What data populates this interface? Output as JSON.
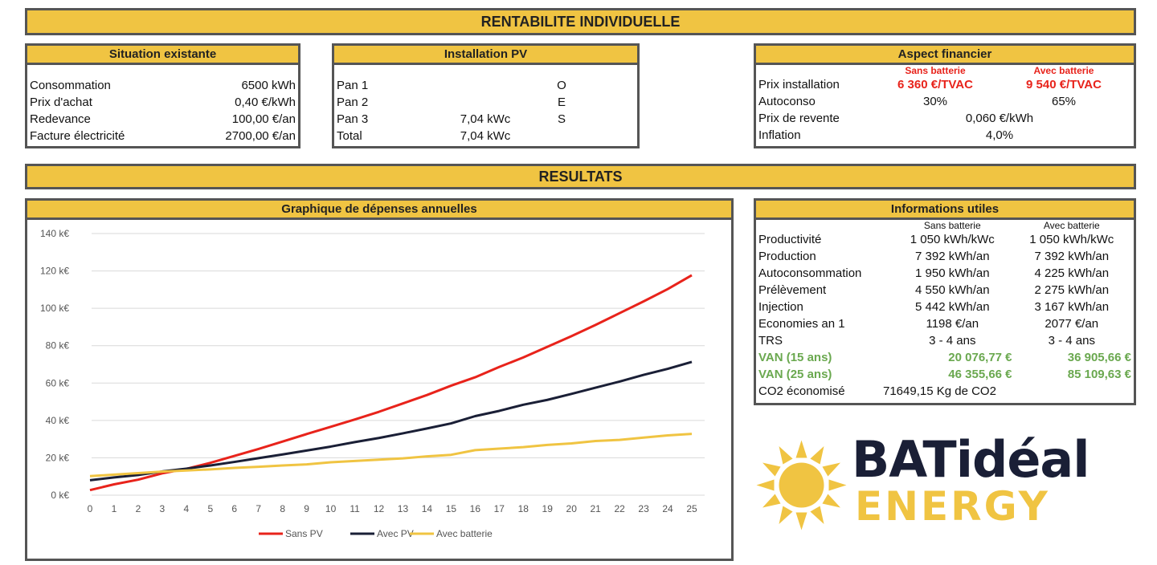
{
  "header": {
    "title": "RENTABILITE INDIVIDUELLE"
  },
  "situation": {
    "title": "Situation existante",
    "rows": [
      {
        "label": "Consommation",
        "value": "6500 kWh"
      },
      {
        "label": "Prix d'achat",
        "value": "0,40 €/kWh"
      },
      {
        "label": "Redevance",
        "value": "100,00 €/an"
      },
      {
        "label": "Facture électricité",
        "value": "2700,00 €/an"
      }
    ]
  },
  "installation": {
    "title": "Installation PV",
    "rows": [
      {
        "label": "Pan 1",
        "power": "",
        "orientation": "O"
      },
      {
        "label": "Pan 2",
        "power": "",
        "orientation": "E"
      },
      {
        "label": "Pan 3",
        "power": "7,04 kWc",
        "orientation": "S"
      },
      {
        "label": "Total",
        "power": "7,04 kWc",
        "orientation": ""
      }
    ]
  },
  "financier": {
    "title": "Aspect financier",
    "col_sans": "Sans batterie",
    "col_avec": "Avec batterie",
    "prix_label": "Prix installation",
    "prix_sans": "6 360 €/TVAC",
    "prix_avec": "9 540 €/TVAC",
    "autoconso_label": "Autoconso",
    "autoconso_sans": "30%",
    "autoconso_avec": "65%",
    "revente_label": "Prix de revente",
    "revente_value": "0,060 €/kWh",
    "inflation_label": "Inflation",
    "inflation_value": "4,0%"
  },
  "resultats": {
    "title": "RESULTATS"
  },
  "chart_box": {
    "title": "Graphique de dépenses annuelles"
  },
  "chart_data": {
    "type": "line",
    "title": "Graphique de dépenses annuelles",
    "x": [
      0,
      1,
      2,
      3,
      4,
      5,
      6,
      7,
      8,
      9,
      10,
      11,
      12,
      13,
      14,
      15,
      16,
      17,
      18,
      19,
      20,
      21,
      22,
      23,
      24,
      25
    ],
    "ylim": [
      0,
      140
    ],
    "yticks": [
      0,
      20,
      40,
      60,
      80,
      100,
      120,
      140
    ],
    "ytick_labels": [
      "0 k€",
      "20 k€",
      "40 k€",
      "60 k€",
      "80 k€",
      "100 k€",
      "120 k€",
      "140 k€"
    ],
    "legend_position": "bottom",
    "grid": true,
    "series": [
      {
        "name": "Sans PV",
        "color": "#e8231b",
        "values": [
          2.7,
          5.8,
          8.3,
          11.7,
          14.1,
          17.3,
          21.0,
          24.7,
          28.7,
          32.7,
          36.6,
          40.5,
          44.6,
          49.1,
          53.6,
          58.6,
          63.1,
          68.6,
          73.7,
          79.4,
          85.1,
          91.1,
          97.4,
          103.7,
          110.3,
          117.7
        ]
      },
      {
        "name": "Avec PV",
        "color": "#1a1f36",
        "values": [
          8.0,
          9.5,
          10.8,
          12.7,
          14.2,
          15.9,
          17.8,
          19.8,
          21.8,
          23.9,
          26.0,
          28.4,
          30.6,
          33.1,
          35.7,
          38.4,
          42.3,
          45.1,
          48.4,
          51.0,
          54.2,
          57.5,
          60.8,
          64.4,
          67.6,
          71.3
        ]
      },
      {
        "name": "Avec batterie",
        "color": "#f0c442",
        "values": [
          10.2,
          11.0,
          11.8,
          12.6,
          13.2,
          13.8,
          14.6,
          15.2,
          15.9,
          16.5,
          17.6,
          18.3,
          19.0,
          19.7,
          20.8,
          21.6,
          24.1,
          24.9,
          25.7,
          26.9,
          27.7,
          29.0,
          29.6,
          30.8,
          32.0,
          32.8
        ]
      }
    ]
  },
  "infos": {
    "title": "Informations utiles",
    "col_sans": "Sans batterie",
    "col_avec": "Avec batterie",
    "rows": [
      {
        "label": "Productivité",
        "sans": "1 050 kWh/kWc",
        "avec": "1 050 kWh/kWc",
        "style": ""
      },
      {
        "label": "Production",
        "sans": "7 392 kWh/an",
        "avec": "7 392 kWh/an",
        "style": ""
      },
      {
        "label": "Autoconsommation",
        "sans": "1 950 kWh/an",
        "avec": "4 225 kWh/an",
        "style": ""
      },
      {
        "label": "Prélèvement",
        "sans": "4 550 kWh/an",
        "avec": "2 275 kWh/an",
        "style": ""
      },
      {
        "label": "Injection",
        "sans": "5 442 kWh/an",
        "avec": "3 167 kWh/an",
        "style": ""
      },
      {
        "label": "Economies an 1",
        "sans": "1198 €/an",
        "avec": "2077 €/an",
        "style": ""
      },
      {
        "label": "TRS",
        "sans": "3 - 4 ans",
        "avec": "3 - 4 ans",
        "style": ""
      },
      {
        "label": "VAN (15 ans)",
        "sans": "20 076,77 €",
        "avec": "36 905,66 €",
        "style": "green"
      },
      {
        "label": "VAN (25 ans)",
        "sans": "46 355,66 €",
        "avec": "85 109,63 €",
        "style": "green"
      }
    ],
    "co2_label": "CO2 économisé",
    "co2_value": "71649,15 Kg de CO2"
  },
  "logo": {
    "line1": "BATidéal",
    "line2": "ENERGY",
    "color_dark": "#1a1f36",
    "color_gold": "#f0c442"
  }
}
